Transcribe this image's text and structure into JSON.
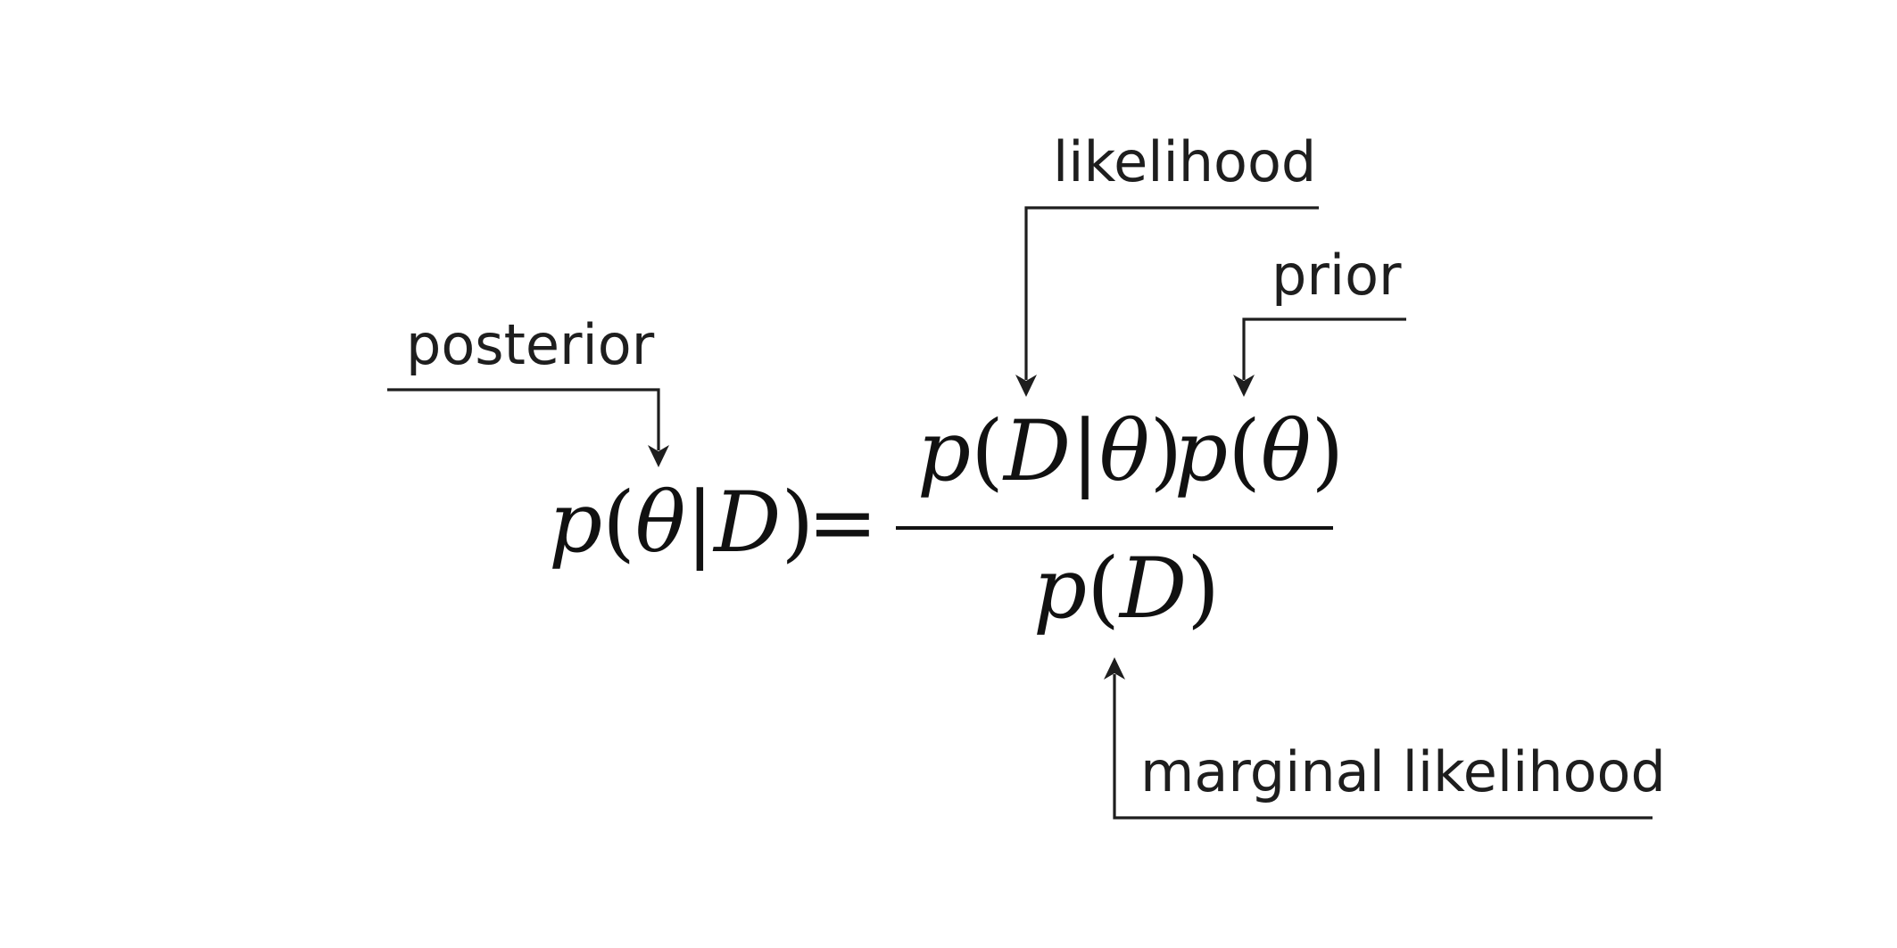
{
  "annotations": {
    "posterior": "posterior",
    "likelihood": "likelihood",
    "prior": "prior",
    "marginal_likelihood": "marginal likelihood"
  },
  "equation": {
    "lhs": {
      "func": "p",
      "open": "(",
      "arg1": "θ",
      "bar": "|",
      "arg2": "D",
      "close": ")"
    },
    "equals": "=",
    "numerator_likelihood": {
      "func": "p",
      "open": "(",
      "arg1": "D",
      "bar": "|",
      "arg2": "θ",
      "close": ")"
    },
    "numerator_prior": {
      "func": "p",
      "open": "(",
      "arg1": "θ",
      "close": ")"
    },
    "denominator": {
      "func": "p",
      "open": "(",
      "arg1": "D",
      "close": ")"
    }
  }
}
